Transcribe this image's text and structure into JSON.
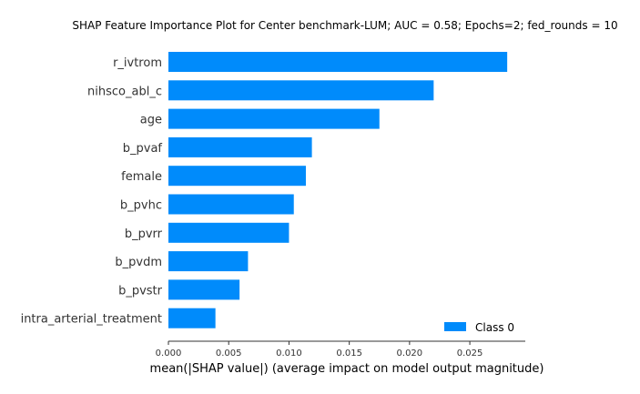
{
  "chart_data": {
    "type": "bar",
    "orientation": "horizontal",
    "title": "SHAP Feature Importance Plot for Center benchmark-LUM; AUC = 0.58; Epochs=2; fed_rounds = 10",
    "xlabel": "mean(|SHAP value|) (average impact on model output magnitude)",
    "ylabel": "",
    "categories": [
      "r_ivtrom",
      "nihsco_abl_c",
      "age",
      "b_pvaf",
      "female",
      "b_pvhc",
      "b_pvrr",
      "b_pvdm",
      "b_pvstr",
      "intra_arterial_treatment"
    ],
    "series": [
      {
        "name": "Class 0",
        "color": "#008bfb",
        "values": [
          0.0281,
          0.022,
          0.0175,
          0.0119,
          0.0114,
          0.0104,
          0.01,
          0.0066,
          0.0059,
          0.0039
        ]
      }
    ],
    "xlim": [
      0,
      0.0296
    ],
    "xticks": [
      "0.000",
      "0.005",
      "0.010",
      "0.015",
      "0.020",
      "0.025"
    ],
    "xtick_values": [
      0,
      0.005,
      0.01,
      0.015,
      0.02,
      0.025
    ],
    "grid": false,
    "legend": {
      "position": "bottom-right",
      "entries": [
        "Class 0"
      ]
    }
  }
}
